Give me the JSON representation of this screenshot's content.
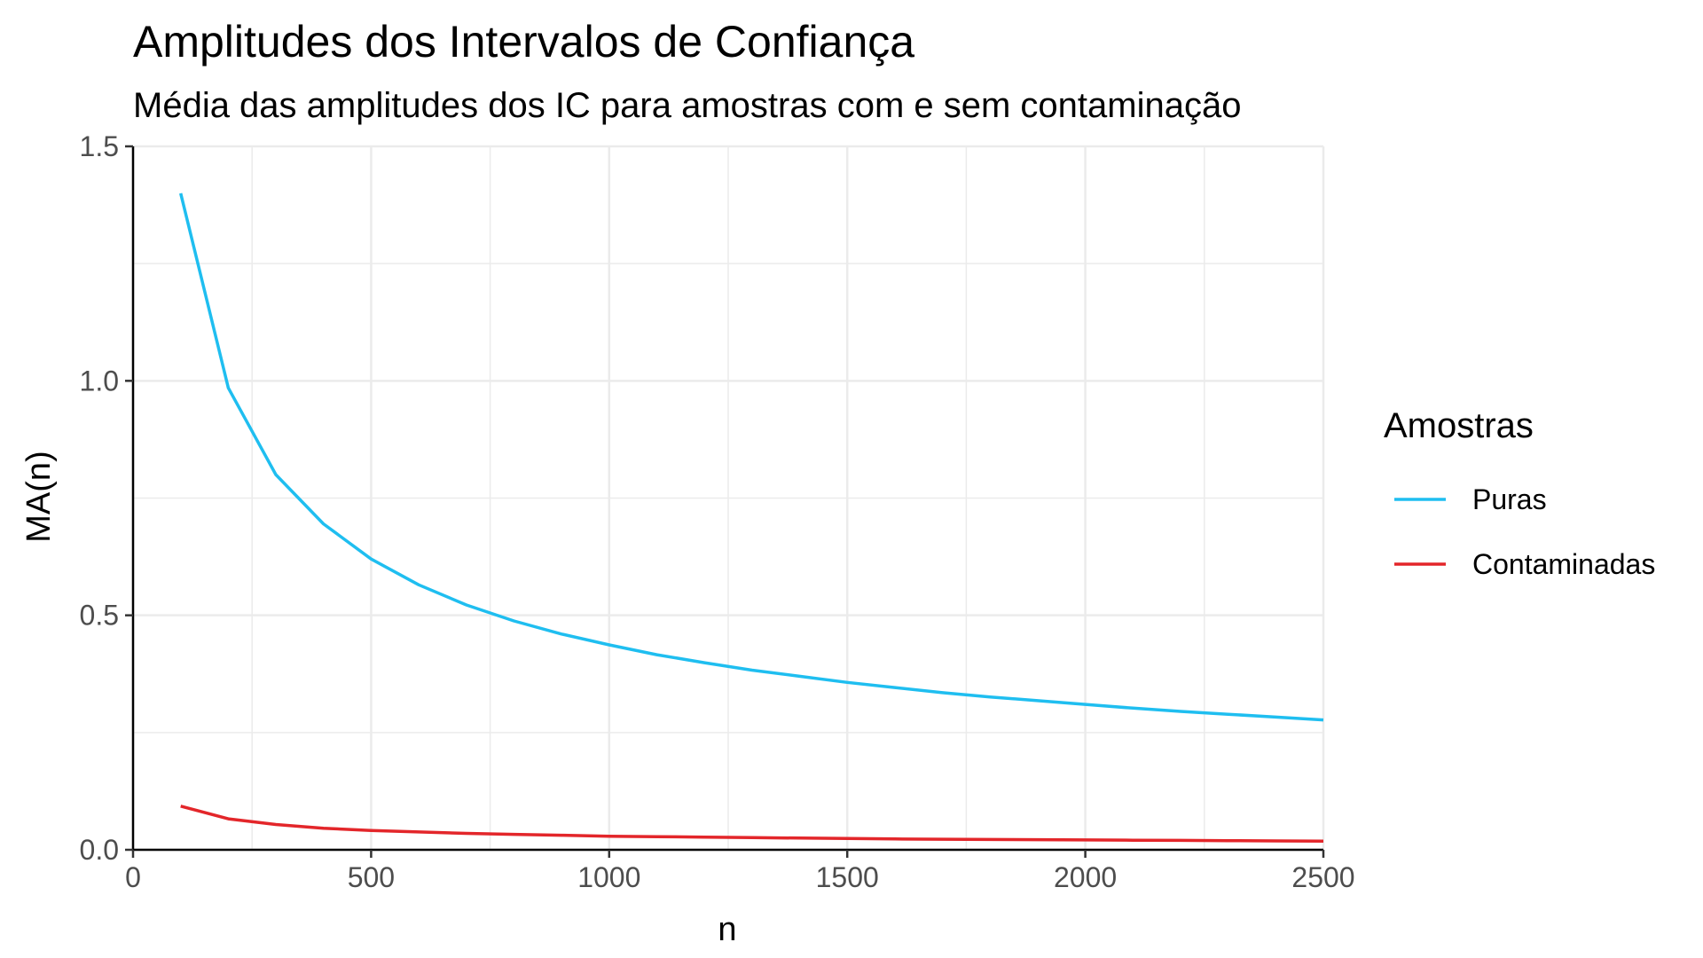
{
  "chart_data": {
    "type": "line",
    "title": "Amplitudes dos Intervalos de Confiança",
    "subtitle": "Média das amplitudes dos IC para amostras com e sem contaminação",
    "xlabel": "n",
    "ylabel": "MA(n)",
    "xlim": [
      0,
      2500
    ],
    "ylim": [
      0,
      1.5
    ],
    "xticks": [
      0,
      500,
      1000,
      1500,
      2000,
      2500
    ],
    "yticks": [
      0.0,
      0.5,
      1.0,
      1.5
    ],
    "xtick_labels": [
      "0",
      "500",
      "1000",
      "1500",
      "2000",
      "2500"
    ],
    "ytick_labels": [
      "0.0",
      "0.5",
      "1.0",
      "1.5"
    ],
    "grid": true,
    "legend": {
      "title": "Amostras",
      "position": "right"
    },
    "x": [
      100,
      200,
      300,
      400,
      500,
      600,
      700,
      800,
      900,
      1000,
      1100,
      1200,
      1300,
      1400,
      1500,
      1600,
      1700,
      1800,
      1900,
      2000,
      2100,
      2200,
      2300,
      2400,
      2500
    ],
    "series": [
      {
        "name": "Puras",
        "color": "#1fbef0",
        "values": [
          1.4,
          0.985,
          0.8,
          0.695,
          0.62,
          0.565,
          0.522,
          0.488,
          0.46,
          0.437,
          0.416,
          0.399,
          0.383,
          0.37,
          0.357,
          0.346,
          0.335,
          0.326,
          0.318,
          0.31,
          0.302,
          0.295,
          0.289,
          0.283,
          0.277
        ]
      },
      {
        "name": "Contaminadas",
        "color": "#e3262a",
        "values": [
          0.093,
          0.066,
          0.054,
          0.046,
          0.041,
          0.038,
          0.035,
          0.033,
          0.031,
          0.029,
          0.028,
          0.027,
          0.026,
          0.025,
          0.024,
          0.023,
          0.0225,
          0.022,
          0.0215,
          0.021,
          0.0205,
          0.02,
          0.0195,
          0.019,
          0.0185
        ]
      }
    ]
  }
}
